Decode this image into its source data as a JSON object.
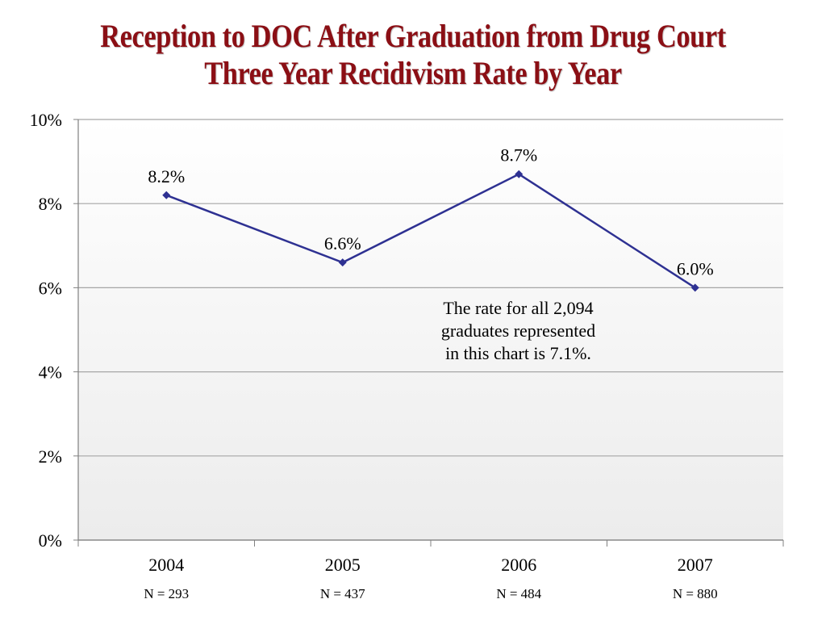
{
  "title": {
    "line1": "Reception to DOC After Graduation from Drug Court",
    "line2": "Three Year Recidivism Rate by Year"
  },
  "annotation": {
    "line1": "The rate for all 2,094",
    "line2": "graduates represented",
    "line3": "in this chart is 7.1%."
  },
  "colors": {
    "title": "#8b0f15",
    "series": "#2e3192",
    "grid": "#a6a6a6"
  },
  "chart_data": {
    "type": "line",
    "categories": [
      "2004",
      "2005",
      "2006",
      "2007"
    ],
    "category_sublabels": [
      "N = 293",
      "N = 437",
      "N = 484",
      "N = 880"
    ],
    "series": [
      {
        "values": [
          8.2,
          6.6,
          8.7,
          6.0
        ]
      }
    ],
    "data_labels": [
      "8.2%",
      "6.6%",
      "8.7%",
      "6.0%"
    ],
    "ylim": [
      0,
      10
    ],
    "yticks": [
      0,
      2,
      4,
      6,
      8,
      10
    ],
    "ytick_labels": [
      "0%",
      "2%",
      "4%",
      "6%",
      "8%",
      "10%"
    ],
    "grid": true,
    "legend": "none",
    "xlabel": "",
    "ylabel": ""
  }
}
